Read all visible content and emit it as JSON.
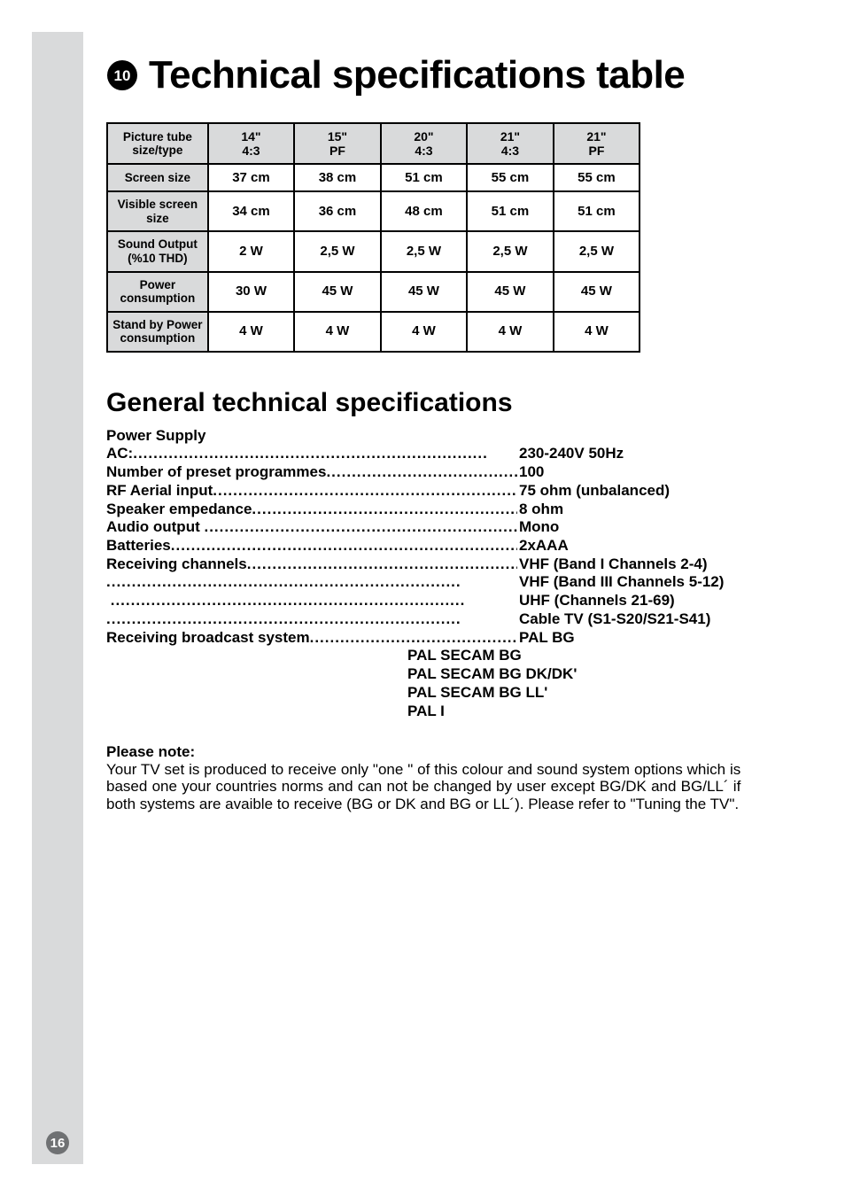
{
  "colors": {
    "sidebar_bg": "#d9dadb",
    "table_header_bg": "#d9dadb",
    "text": "#000000",
    "page_bg": "#ffffff",
    "border": "#000000"
  },
  "page_number": "16",
  "title_icon_number": "10",
  "title": "Technical specifications table",
  "spec_table": {
    "columns": [
      "Picture tube size/type",
      "14\"\n4:3",
      "15\"\nPF",
      "20\"\n4:3",
      "21\"\n4:3",
      "21\"\nPF"
    ],
    "rows": [
      {
        "head": "Screen size",
        "cells": [
          "37 cm",
          "38 cm",
          "51 cm",
          "55 cm",
          "55 cm"
        ]
      },
      {
        "head": "Visible screen size",
        "cells": [
          "34 cm",
          "36 cm",
          "48 cm",
          "51 cm",
          "51 cm"
        ]
      },
      {
        "head": "Sound Output (%10 THD)",
        "cells": [
          "2 W",
          "2,5 W",
          "2,5 W",
          "2,5 W",
          "2,5 W"
        ]
      },
      {
        "head": "Power consumption",
        "cells": [
          "30 W",
          "45 W",
          "45 W",
          "45 W",
          "45 W"
        ]
      },
      {
        "head": "Stand by Power consumption",
        "cells": [
          "4 W",
          "4 W",
          "4 W",
          "4 W",
          "4 W"
        ]
      }
    ]
  },
  "subheading": "General technical  specifications",
  "general_specs": {
    "section_label": "Power Supply",
    "items": [
      {
        "label": "AC:",
        "value": "230-240V 50Hz"
      },
      {
        "label": "Number of preset programmes",
        "value": "100"
      },
      {
        "label": "RF Aerial input",
        "value": "75 ohm (unbalanced)"
      },
      {
        "label": "Speaker empedance",
        "value": "8 ohm"
      },
      {
        "label": "Audio output ",
        "value": "Mono"
      },
      {
        "label": "Batteries",
        "value": "2xAAA"
      },
      {
        "label": "Receiving channels",
        "value": "VHF (Band I Channels 2-4)"
      },
      {
        "label": "",
        "value": "VHF (Band III Channels 5-12)"
      },
      {
        "label": " ",
        "value": "UHF (Channels 21-69)"
      },
      {
        "label": "",
        "value": "Cable TV (S1-S20/S21-S41)"
      },
      {
        "label": "Receiving broadcast system",
        "value": "PAL BG"
      }
    ],
    "continuation_values": [
      "PAL SECAM BG",
      "PAL SECAM BG DK/DK'",
      "PAL SECAM BG LL'",
      "PAL I"
    ]
  },
  "note": {
    "title": "Please note:",
    "body": "Your TV set is produced to receive only \"one \" of this colour  and sound system options which is based one your countries norms and can not be changed by user except BG/DK and BG/LL´ if both systems are avaible to receive (BG or DK and BG or LL´). Please refer to \"Tuning the TV\"."
  }
}
